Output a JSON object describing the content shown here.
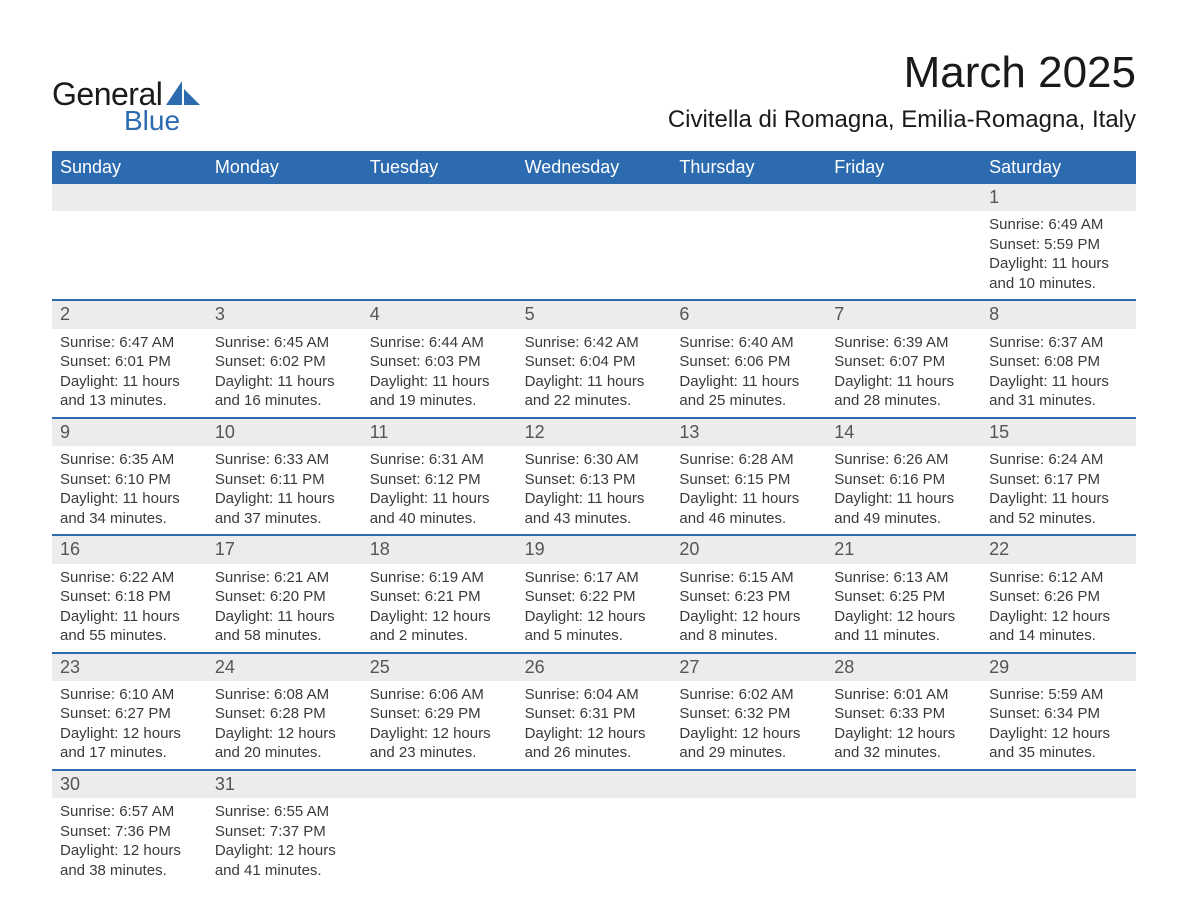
{
  "logo": {
    "word1": "General",
    "word2": "Blue",
    "shape_color": "#2d6bb0",
    "text_color": "#1a1a1a"
  },
  "header": {
    "month_title": "March 2025",
    "location": "Civitella di Romagna, Emilia-Romagna, Italy"
  },
  "calendar": {
    "header_bg": "#2d6bb0",
    "header_fg": "#ffffff",
    "daynum_bg": "#ececec",
    "divider_color": "#2d6bb0",
    "text_color": "#3a3a3a",
    "font_family": "Arial",
    "day_labels": [
      "Sunday",
      "Monday",
      "Tuesday",
      "Wednesday",
      "Thursday",
      "Friday",
      "Saturday"
    ],
    "weeks": [
      {
        "nums": [
          "",
          "",
          "",
          "",
          "",
          "",
          "1"
        ],
        "info": [
          null,
          null,
          null,
          null,
          null,
          null,
          {
            "sunrise": "Sunrise: 6:49 AM",
            "sunset": "Sunset: 5:59 PM",
            "dl1": "Daylight: 11 hours",
            "dl2": "and 10 minutes."
          }
        ]
      },
      {
        "nums": [
          "2",
          "3",
          "4",
          "5",
          "6",
          "7",
          "8"
        ],
        "info": [
          {
            "sunrise": "Sunrise: 6:47 AM",
            "sunset": "Sunset: 6:01 PM",
            "dl1": "Daylight: 11 hours",
            "dl2": "and 13 minutes."
          },
          {
            "sunrise": "Sunrise: 6:45 AM",
            "sunset": "Sunset: 6:02 PM",
            "dl1": "Daylight: 11 hours",
            "dl2": "and 16 minutes."
          },
          {
            "sunrise": "Sunrise: 6:44 AM",
            "sunset": "Sunset: 6:03 PM",
            "dl1": "Daylight: 11 hours",
            "dl2": "and 19 minutes."
          },
          {
            "sunrise": "Sunrise: 6:42 AM",
            "sunset": "Sunset: 6:04 PM",
            "dl1": "Daylight: 11 hours",
            "dl2": "and 22 minutes."
          },
          {
            "sunrise": "Sunrise: 6:40 AM",
            "sunset": "Sunset: 6:06 PM",
            "dl1": "Daylight: 11 hours",
            "dl2": "and 25 minutes."
          },
          {
            "sunrise": "Sunrise: 6:39 AM",
            "sunset": "Sunset: 6:07 PM",
            "dl1": "Daylight: 11 hours",
            "dl2": "and 28 minutes."
          },
          {
            "sunrise": "Sunrise: 6:37 AM",
            "sunset": "Sunset: 6:08 PM",
            "dl1": "Daylight: 11 hours",
            "dl2": "and 31 minutes."
          }
        ]
      },
      {
        "nums": [
          "9",
          "10",
          "11",
          "12",
          "13",
          "14",
          "15"
        ],
        "info": [
          {
            "sunrise": "Sunrise: 6:35 AM",
            "sunset": "Sunset: 6:10 PM",
            "dl1": "Daylight: 11 hours",
            "dl2": "and 34 minutes."
          },
          {
            "sunrise": "Sunrise: 6:33 AM",
            "sunset": "Sunset: 6:11 PM",
            "dl1": "Daylight: 11 hours",
            "dl2": "and 37 minutes."
          },
          {
            "sunrise": "Sunrise: 6:31 AM",
            "sunset": "Sunset: 6:12 PM",
            "dl1": "Daylight: 11 hours",
            "dl2": "and 40 minutes."
          },
          {
            "sunrise": "Sunrise: 6:30 AM",
            "sunset": "Sunset: 6:13 PM",
            "dl1": "Daylight: 11 hours",
            "dl2": "and 43 minutes."
          },
          {
            "sunrise": "Sunrise: 6:28 AM",
            "sunset": "Sunset: 6:15 PM",
            "dl1": "Daylight: 11 hours",
            "dl2": "and 46 minutes."
          },
          {
            "sunrise": "Sunrise: 6:26 AM",
            "sunset": "Sunset: 6:16 PM",
            "dl1": "Daylight: 11 hours",
            "dl2": "and 49 minutes."
          },
          {
            "sunrise": "Sunrise: 6:24 AM",
            "sunset": "Sunset: 6:17 PM",
            "dl1": "Daylight: 11 hours",
            "dl2": "and 52 minutes."
          }
        ]
      },
      {
        "nums": [
          "16",
          "17",
          "18",
          "19",
          "20",
          "21",
          "22"
        ],
        "info": [
          {
            "sunrise": "Sunrise: 6:22 AM",
            "sunset": "Sunset: 6:18 PM",
            "dl1": "Daylight: 11 hours",
            "dl2": "and 55 minutes."
          },
          {
            "sunrise": "Sunrise: 6:21 AM",
            "sunset": "Sunset: 6:20 PM",
            "dl1": "Daylight: 11 hours",
            "dl2": "and 58 minutes."
          },
          {
            "sunrise": "Sunrise: 6:19 AM",
            "sunset": "Sunset: 6:21 PM",
            "dl1": "Daylight: 12 hours",
            "dl2": "and 2 minutes."
          },
          {
            "sunrise": "Sunrise: 6:17 AM",
            "sunset": "Sunset: 6:22 PM",
            "dl1": "Daylight: 12 hours",
            "dl2": "and 5 minutes."
          },
          {
            "sunrise": "Sunrise: 6:15 AM",
            "sunset": "Sunset: 6:23 PM",
            "dl1": "Daylight: 12 hours",
            "dl2": "and 8 minutes."
          },
          {
            "sunrise": "Sunrise: 6:13 AM",
            "sunset": "Sunset: 6:25 PM",
            "dl1": "Daylight: 12 hours",
            "dl2": "and 11 minutes."
          },
          {
            "sunrise": "Sunrise: 6:12 AM",
            "sunset": "Sunset: 6:26 PM",
            "dl1": "Daylight: 12 hours",
            "dl2": "and 14 minutes."
          }
        ]
      },
      {
        "nums": [
          "23",
          "24",
          "25",
          "26",
          "27",
          "28",
          "29"
        ],
        "info": [
          {
            "sunrise": "Sunrise: 6:10 AM",
            "sunset": "Sunset: 6:27 PM",
            "dl1": "Daylight: 12 hours",
            "dl2": "and 17 minutes."
          },
          {
            "sunrise": "Sunrise: 6:08 AM",
            "sunset": "Sunset: 6:28 PM",
            "dl1": "Daylight: 12 hours",
            "dl2": "and 20 minutes."
          },
          {
            "sunrise": "Sunrise: 6:06 AM",
            "sunset": "Sunset: 6:29 PM",
            "dl1": "Daylight: 12 hours",
            "dl2": "and 23 minutes."
          },
          {
            "sunrise": "Sunrise: 6:04 AM",
            "sunset": "Sunset: 6:31 PM",
            "dl1": "Daylight: 12 hours",
            "dl2": "and 26 minutes."
          },
          {
            "sunrise": "Sunrise: 6:02 AM",
            "sunset": "Sunset: 6:32 PM",
            "dl1": "Daylight: 12 hours",
            "dl2": "and 29 minutes."
          },
          {
            "sunrise": "Sunrise: 6:01 AM",
            "sunset": "Sunset: 6:33 PM",
            "dl1": "Daylight: 12 hours",
            "dl2": "and 32 minutes."
          },
          {
            "sunrise": "Sunrise: 5:59 AM",
            "sunset": "Sunset: 6:34 PM",
            "dl1": "Daylight: 12 hours",
            "dl2": "and 35 minutes."
          }
        ]
      },
      {
        "nums": [
          "30",
          "31",
          "",
          "",
          "",
          "",
          ""
        ],
        "info": [
          {
            "sunrise": "Sunrise: 6:57 AM",
            "sunset": "Sunset: 7:36 PM",
            "dl1": "Daylight: 12 hours",
            "dl2": "and 38 minutes."
          },
          {
            "sunrise": "Sunrise: 6:55 AM",
            "sunset": "Sunset: 7:37 PM",
            "dl1": "Daylight: 12 hours",
            "dl2": "and 41 minutes."
          },
          null,
          null,
          null,
          null,
          null
        ]
      }
    ]
  }
}
